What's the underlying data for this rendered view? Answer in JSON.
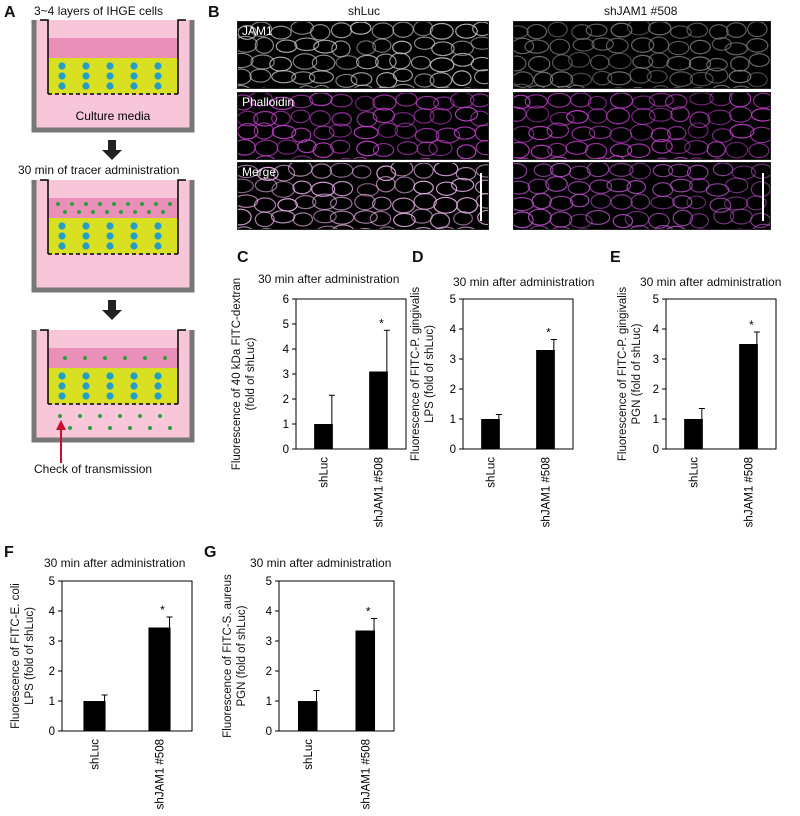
{
  "panelA": {
    "letter": "A",
    "top_caption": "3~4 layers of IHGE cells",
    "media_label": "Culture media",
    "step2_caption": "30 min of tracer administration",
    "bottom_caption": "Check of transmission",
    "colors": {
      "media": "#f7c6d9",
      "top_media": "#e98fb8",
      "cells": "#d9e021",
      "nucleus": "#1fa0c8",
      "tracer": "#2e9e3e",
      "arrow_red": "#c8102e"
    }
  },
  "panelB": {
    "letter": "B",
    "col_labels": [
      "shLuc",
      "shJAM1 #508"
    ],
    "row_labels": [
      "JAM1",
      "Phalloidin",
      "Merge"
    ],
    "colors": {
      "jam1": "#cfcfcf",
      "phalloidin": "#c040c8",
      "merge": "#e8b0e8"
    }
  },
  "charts": [
    {
      "letter": "C",
      "chart_data": {
        "type": "bar",
        "title": "30 min after administration",
        "ylabel_lines": [
          "Fluorescence of 40 kDa FITC-dextran",
          "(fold of shLuc)"
        ],
        "categories": [
          "shLuc",
          "shJAM1 #508"
        ],
        "values": [
          1.0,
          3.1
        ],
        "errors": [
          1.15,
          1.65
        ],
        "significance": [
          "",
          "*"
        ],
        "ylim": [
          0,
          6
        ],
        "yticks": [
          0,
          1,
          2,
          3,
          4,
          5,
          6
        ]
      }
    },
    {
      "letter": "D",
      "chart_data": {
        "type": "bar",
        "title": "30 min after administration",
        "ylabel_lines": [
          "Fluorescence of FITC-P. gingivalis",
          "LPS (fold of shLuc)"
        ],
        "categories": [
          "shLuc",
          "shJAM1 #508"
        ],
        "values": [
          1.0,
          3.3
        ],
        "errors": [
          0.15,
          0.35
        ],
        "significance": [
          "",
          "*"
        ],
        "ylim": [
          0,
          5
        ],
        "yticks": [
          0,
          1,
          2,
          3,
          4,
          5
        ]
      }
    },
    {
      "letter": "E",
      "chart_data": {
        "type": "bar",
        "title": "30 min after administration",
        "ylabel_lines": [
          "Fluorescence of FITC-P. gingivalis",
          "PGN (fold of shLuc)"
        ],
        "categories": [
          "shLuc",
          "shJAM1 #508"
        ],
        "values": [
          1.0,
          3.5
        ],
        "errors": [
          0.35,
          0.4
        ],
        "significance": [
          "",
          "*"
        ],
        "ylim": [
          0,
          5
        ],
        "yticks": [
          0,
          1,
          2,
          3,
          4,
          5
        ]
      }
    },
    {
      "letter": "F",
      "chart_data": {
        "type": "bar",
        "title": "30 min after administration",
        "ylabel_lines": [
          "Fluorescence of FITC-E. coli",
          "LPS (fold of shLuc)"
        ],
        "categories": [
          "shLuc",
          "shJAM1 #508"
        ],
        "values": [
          1.0,
          3.45
        ],
        "errors": [
          0.2,
          0.35
        ],
        "significance": [
          "",
          "*"
        ],
        "ylim": [
          0,
          5
        ],
        "yticks": [
          0,
          1,
          2,
          3,
          4,
          5
        ]
      }
    },
    {
      "letter": "G",
      "chart_data": {
        "type": "bar",
        "title": "30 min after administration",
        "ylabel_lines": [
          "Fluorescence of FITC-S. aureus",
          "PGN (fold of shLuc)"
        ],
        "categories": [
          "shLuc",
          "shJAM1 #508"
        ],
        "values": [
          1.0,
          3.35
        ],
        "errors": [
          0.35,
          0.4
        ],
        "significance": [
          "",
          "*"
        ],
        "ylim": [
          0,
          5
        ],
        "yticks": [
          0,
          1,
          2,
          3,
          4,
          5
        ]
      }
    }
  ]
}
